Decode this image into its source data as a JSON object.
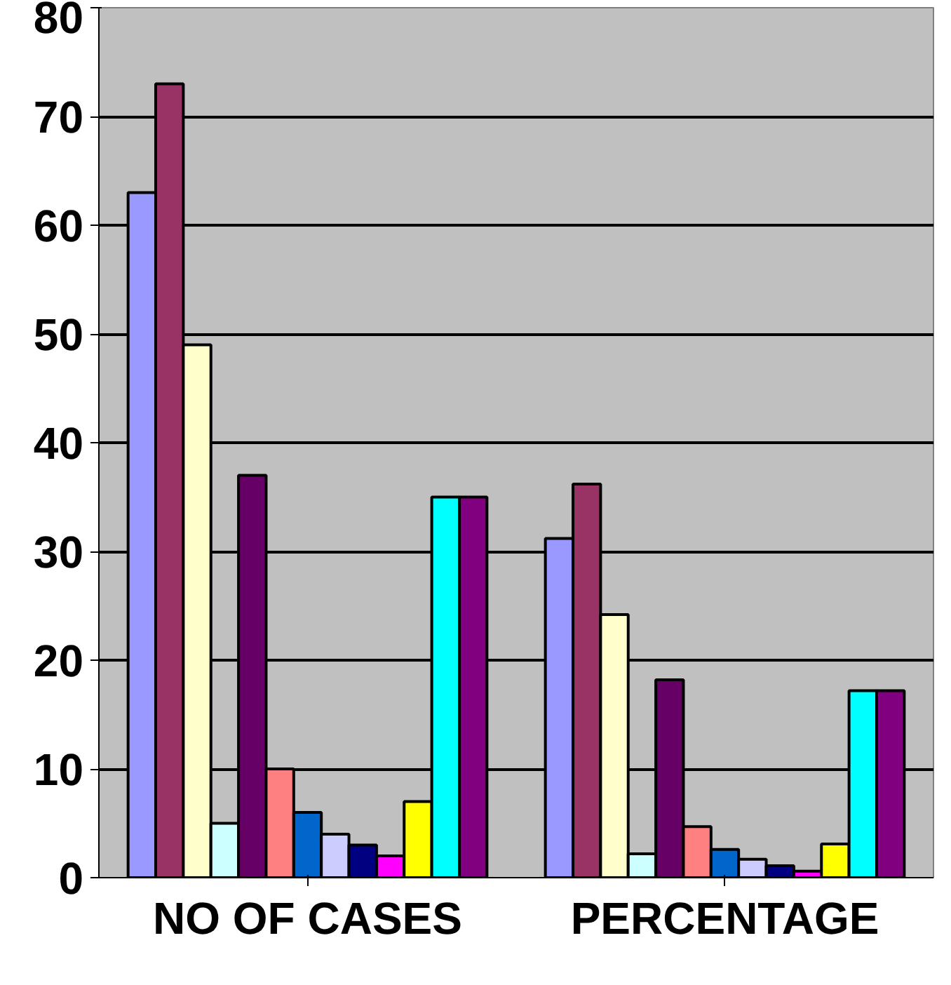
{
  "chart_data": {
    "type": "bar",
    "categories": [
      "NO OF CASES",
      "PERCENTAGE"
    ],
    "series": [
      {
        "color": "#9999ff",
        "values": [
          63,
          31.2
        ]
      },
      {
        "color": "#993366",
        "values": [
          73,
          36.2
        ]
      },
      {
        "color": "#ffffcc",
        "values": [
          49,
          24.2
        ]
      },
      {
        "color": "#ccffff",
        "values": [
          5,
          2.2
        ]
      },
      {
        "color": "#660066",
        "values": [
          37,
          18.2
        ]
      },
      {
        "color": "#ff8080",
        "values": [
          10,
          4.7
        ]
      },
      {
        "color": "#0066cc",
        "values": [
          6,
          2.6
        ]
      },
      {
        "color": "#ccccff",
        "values": [
          4,
          1.7
        ]
      },
      {
        "color": "#000080",
        "values": [
          3,
          1.1
        ]
      },
      {
        "color": "#ff00ff",
        "values": [
          2,
          0.6
        ]
      },
      {
        "color": "#ffff00",
        "values": [
          7,
          3.1
        ]
      },
      {
        "color": "#00ffff",
        "values": [
          35,
          17.2
        ]
      },
      {
        "color": "#800080",
        "values": [
          35,
          17.2
        ]
      }
    ],
    "ylim": [
      0,
      80
    ],
    "yticks": [
      0,
      10,
      20,
      30,
      40,
      50,
      60,
      70,
      80
    ],
    "grid": "y"
  }
}
